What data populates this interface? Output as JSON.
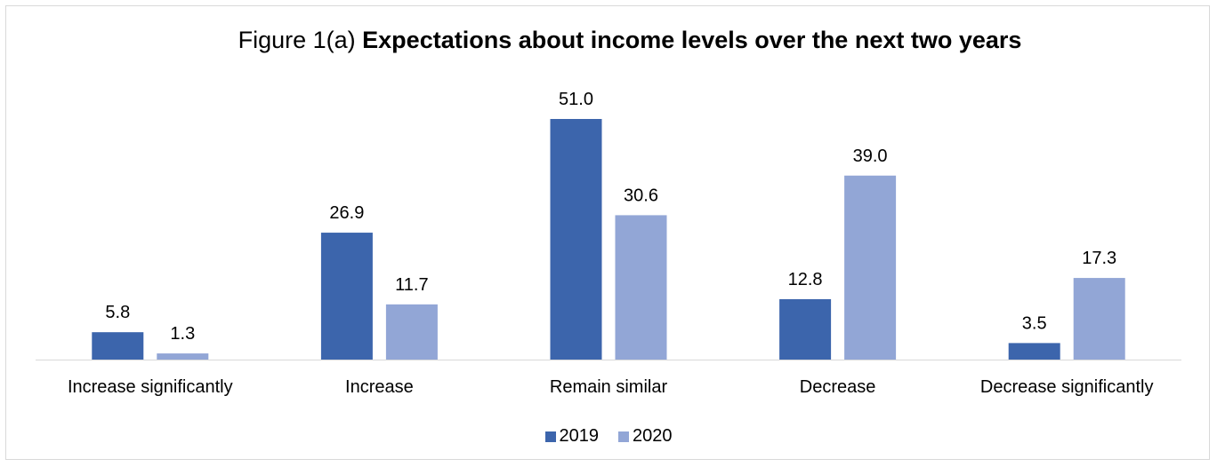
{
  "chart_data": {
    "type": "bar",
    "title_prefix": "Figure 1(a) ",
    "title_bold": "Expectations about income levels over the next two years",
    "categories": [
      "Increase significantly",
      "Increase",
      "Remain similar",
      "Decrease",
      "Decrease significantly"
    ],
    "series": [
      {
        "name": "2019",
        "color": "#3c65ac",
        "values": [
          5.8,
          26.9,
          51.0,
          12.8,
          3.5
        ]
      },
      {
        "name": "2020",
        "color": "#92a6d6",
        "values": [
          1.3,
          11.7,
          30.6,
          39.0,
          17.3
        ]
      }
    ],
    "ylim": [
      0,
      51
    ],
    "grid": false,
    "legend_position": "bottom"
  }
}
